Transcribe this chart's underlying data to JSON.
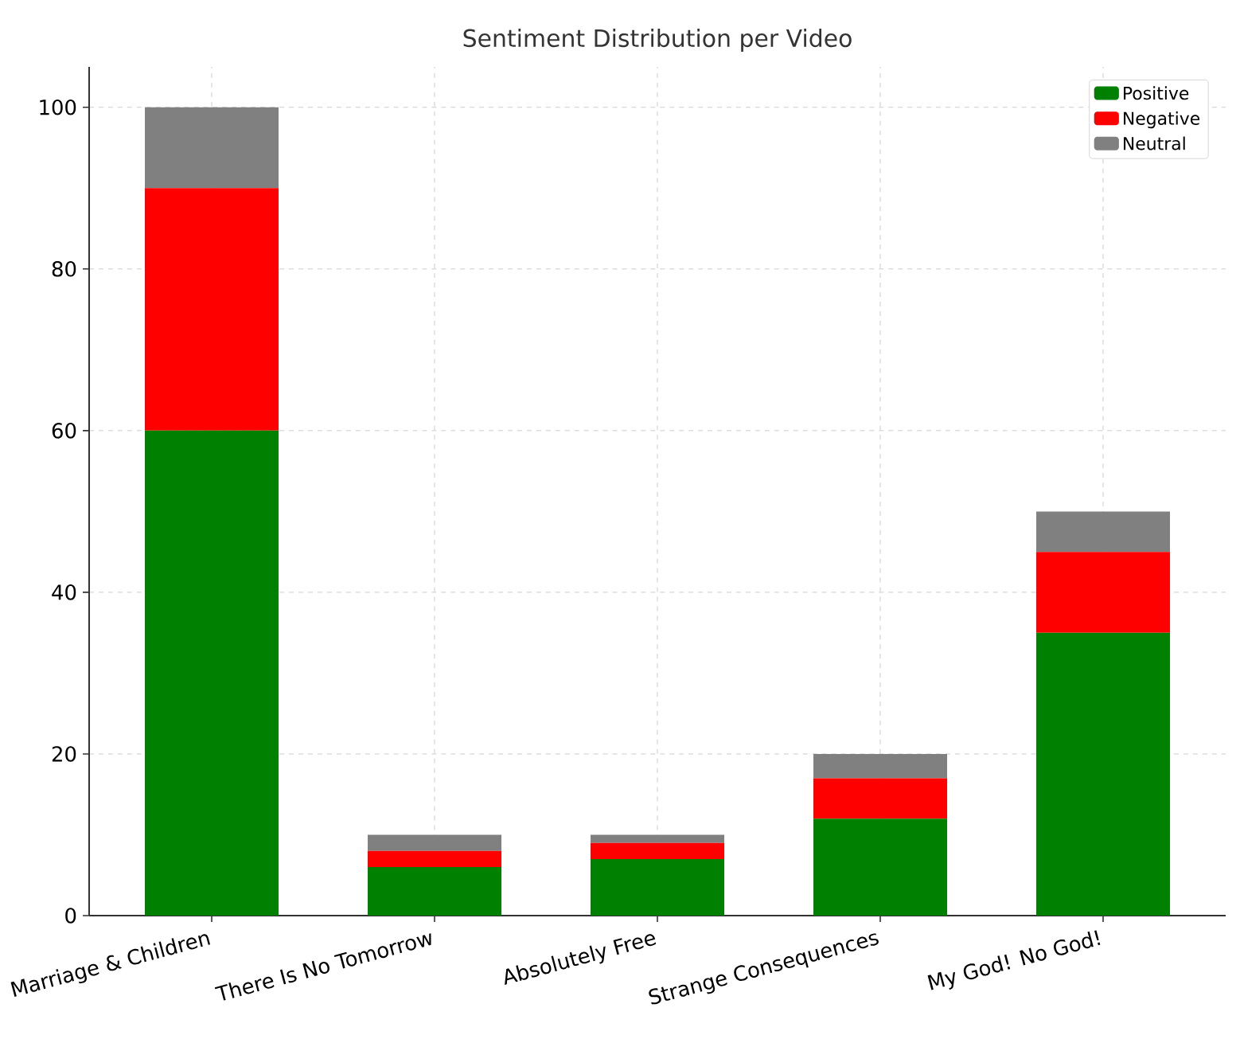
{
  "chart_data": {
    "type": "bar",
    "title": "Sentiment Distribution per Video",
    "categories": [
      "Marriage & Children",
      "There Is No Tomorrow",
      "Absolutely Free",
      "Strange Consequences",
      "My God! No God!"
    ],
    "stacked": true,
    "series": [
      {
        "name": "Positive",
        "color": "#008000",
        "values": [
          60,
          6,
          7,
          12,
          35
        ]
      },
      {
        "name": "Negative",
        "color": "#ff0000",
        "values": [
          30,
          2,
          2,
          5,
          10
        ]
      },
      {
        "name": "Neutral",
        "color": "#808080",
        "values": [
          10,
          2,
          1,
          3,
          5
        ]
      }
    ],
    "ylim": [
      0,
      105
    ],
    "yticks": [
      0,
      20,
      40,
      60,
      80,
      100
    ],
    "grid": true,
    "legend": "top right"
  }
}
